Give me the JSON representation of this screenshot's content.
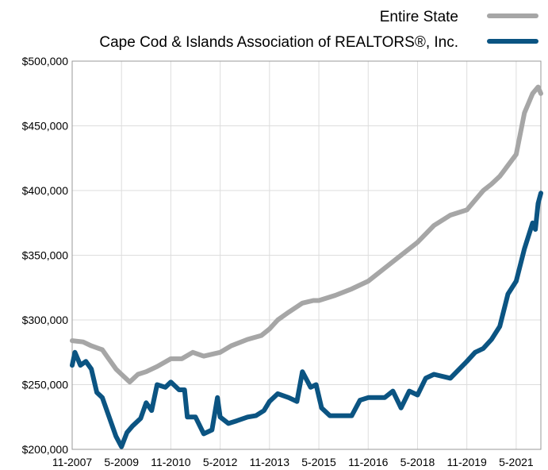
{
  "chart_data": {
    "type": "line",
    "title": "",
    "xlabel": "",
    "ylabel": "",
    "ylim": [
      200000,
      500000
    ],
    "grid": true,
    "legend_position": "top-right",
    "x_ticks": [
      "11-2007",
      "5-2009",
      "11-2010",
      "5-2012",
      "11-2013",
      "5-2015",
      "11-2016",
      "5-2018",
      "11-2019",
      "5-2021"
    ],
    "y_ticks": [
      {
        "value": 200000,
        "label": "$200,000"
      },
      {
        "value": 250000,
        "label": "$250,000"
      },
      {
        "value": 300000,
        "label": "$300,000"
      },
      {
        "value": 350000,
        "label": "$350,000"
      },
      {
        "value": 400000,
        "label": "$400,000"
      },
      {
        "value": 450000,
        "label": "$450,000"
      },
      {
        "value": 500000,
        "label": "$500,000"
      }
    ],
    "x_range": [
      "11-2007",
      "2-2022"
    ],
    "series": [
      {
        "name": "Entire State",
        "color": "#A6A6A6",
        "points": [
          [
            "11-2007",
            284000
          ],
          [
            "3-2008",
            283000
          ],
          [
            "6-2008",
            280000
          ],
          [
            "10-2008",
            277000
          ],
          [
            "12-2008",
            271000
          ],
          [
            "3-2009",
            262000
          ],
          [
            "5-2009",
            258000
          ],
          [
            "8-2009",
            252000
          ],
          [
            "11-2009",
            258000
          ],
          [
            "2-2010",
            260000
          ],
          [
            "6-2010",
            264000
          ],
          [
            "11-2010",
            270000
          ],
          [
            "3-2011",
            270000
          ],
          [
            "7-2011",
            275000
          ],
          [
            "11-2011",
            272000
          ],
          [
            "5-2012",
            275000
          ],
          [
            "9-2012",
            280000
          ],
          [
            "3-2013",
            285000
          ],
          [
            "8-2013",
            288000
          ],
          [
            "11-2013",
            293000
          ],
          [
            "2-2014",
            300000
          ],
          [
            "6-2014",
            306000
          ],
          [
            "11-2014",
            313000
          ],
          [
            "3-2015",
            315000
          ],
          [
            "5-2015",
            315000
          ],
          [
            "11-2015",
            319000
          ],
          [
            "5-2016",
            324000
          ],
          [
            "11-2016",
            330000
          ],
          [
            "5-2017",
            340000
          ],
          [
            "11-2017",
            350000
          ],
          [
            "5-2018",
            360000
          ],
          [
            "11-2018",
            373000
          ],
          [
            "5-2019",
            381000
          ],
          [
            "11-2019",
            385000
          ],
          [
            "5-2020",
            400000
          ],
          [
            "8-2020",
            405000
          ],
          [
            "11-2020",
            411000
          ],
          [
            "5-2021",
            428000
          ],
          [
            "8-2021",
            460000
          ],
          [
            "11-2021",
            475000
          ],
          [
            "1-2022",
            480000
          ],
          [
            "2-2022",
            475000
          ]
        ]
      },
      {
        "name": "Cape Cod & Islands Association of REALTORS®, Inc.",
        "color": "#0B5482",
        "points": [
          [
            "11-2007",
            265000
          ],
          [
            "12-2007",
            275000
          ],
          [
            "2-2008",
            265000
          ],
          [
            "4-2008",
            268000
          ],
          [
            "6-2008",
            262000
          ],
          [
            "8-2008",
            244000
          ],
          [
            "10-2008",
            240000
          ],
          [
            "12-2008",
            228000
          ],
          [
            "3-2009",
            210000
          ],
          [
            "5-2009",
            202000
          ],
          [
            "7-2009",
            213000
          ],
          [
            "9-2009",
            218000
          ],
          [
            "12-2009",
            224000
          ],
          [
            "2-2010",
            236000
          ],
          [
            "4-2010",
            230000
          ],
          [
            "6-2010",
            250000
          ],
          [
            "9-2010",
            248000
          ],
          [
            "11-2010",
            252000
          ],
          [
            "2-2011",
            246000
          ],
          [
            "4-2011",
            246000
          ],
          [
            "5-2011",
            225000
          ],
          [
            "8-2011",
            225000
          ],
          [
            "11-2011",
            212000
          ],
          [
            "2-2012",
            215000
          ],
          [
            "4-2012",
            240000
          ],
          [
            "5-2012",
            225000
          ],
          [
            "8-2012",
            220000
          ],
          [
            "11-2012",
            222000
          ],
          [
            "3-2013",
            225000
          ],
          [
            "6-2013",
            226000
          ],
          [
            "9-2013",
            230000
          ],
          [
            "11-2013",
            237000
          ],
          [
            "2-2014",
            243000
          ],
          [
            "6-2014",
            240000
          ],
          [
            "9-2014",
            237000
          ],
          [
            "11-2014",
            260000
          ],
          [
            "2-2015",
            248000
          ],
          [
            "4-2015",
            250000
          ],
          [
            "6-2015",
            232000
          ],
          [
            "9-2015",
            226000
          ],
          [
            "11-2015",
            226000
          ],
          [
            "5-2016",
            226000
          ],
          [
            "8-2016",
            238000
          ],
          [
            "11-2016",
            240000
          ],
          [
            "5-2017",
            240000
          ],
          [
            "8-2017",
            245000
          ],
          [
            "11-2017",
            232000
          ],
          [
            "2-2018",
            245000
          ],
          [
            "5-2018",
            242000
          ],
          [
            "8-2018",
            255000
          ],
          [
            "11-2018",
            258000
          ],
          [
            "5-2019",
            255000
          ],
          [
            "11-2019",
            268000
          ],
          [
            "2-2020",
            275000
          ],
          [
            "5-2020",
            278000
          ],
          [
            "8-2020",
            285000
          ],
          [
            "11-2020",
            295000
          ],
          [
            "2-2021",
            320000
          ],
          [
            "5-2021",
            330000
          ],
          [
            "8-2021",
            355000
          ],
          [
            "11-2021",
            375000
          ],
          [
            "12-2021",
            370000
          ],
          [
            "1-2022",
            390000
          ],
          [
            "2-2022",
            398000
          ]
        ]
      }
    ]
  }
}
